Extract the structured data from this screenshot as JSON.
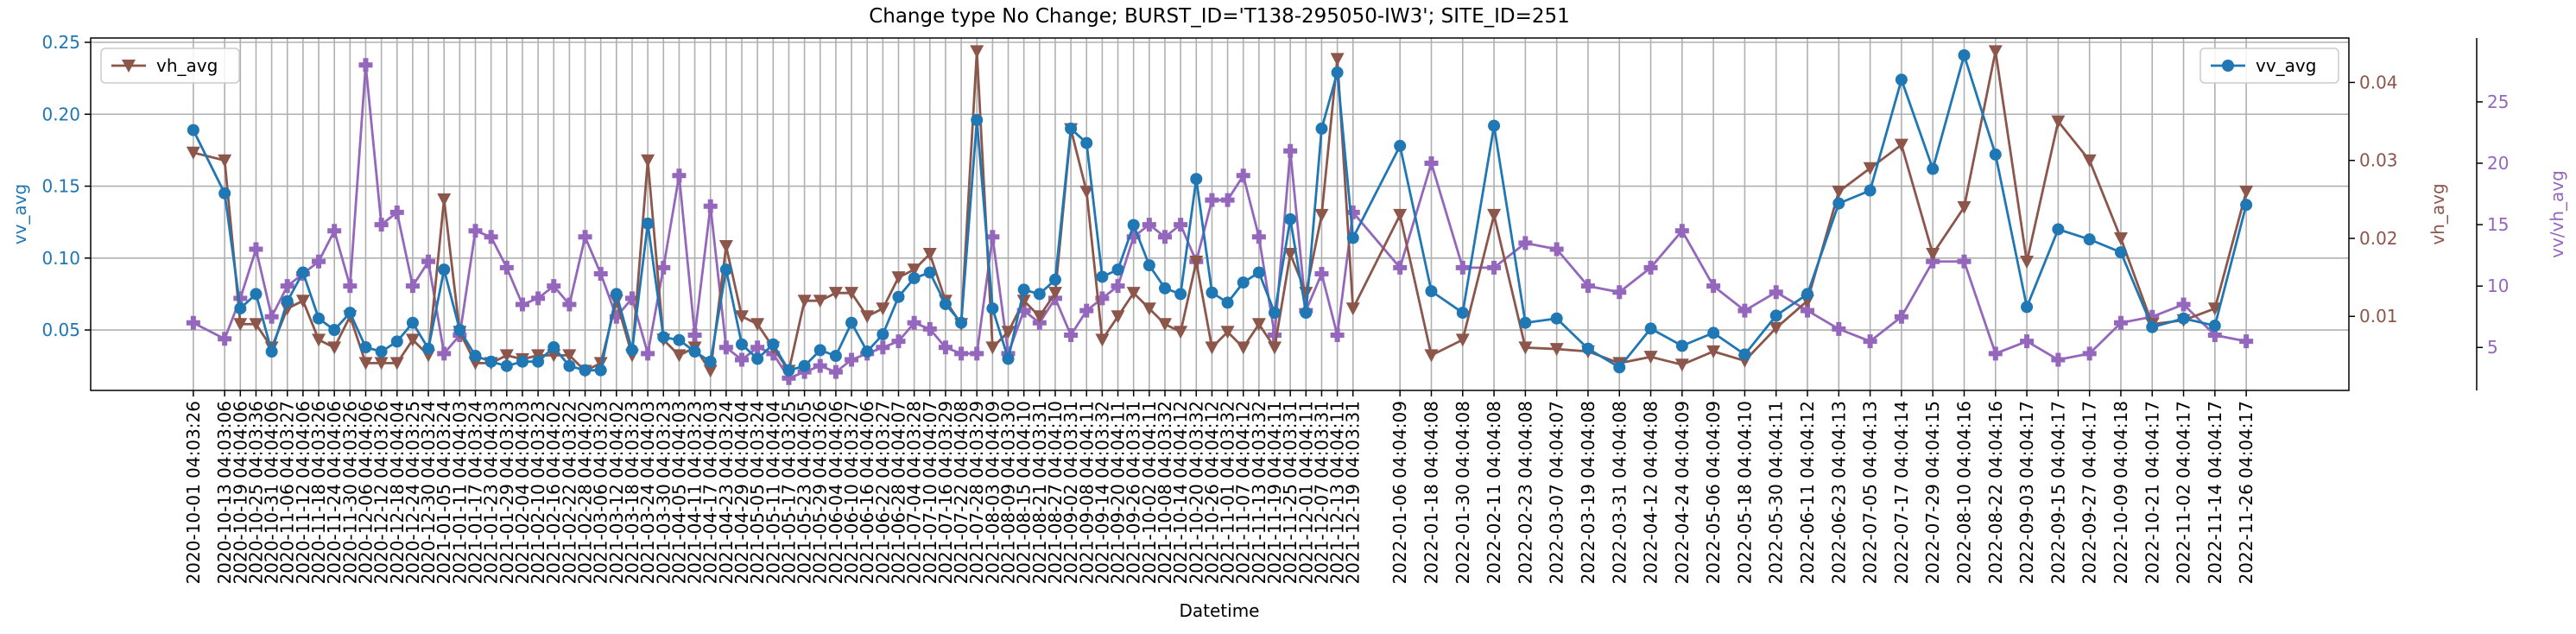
{
  "chart_data": {
    "type": "line",
    "title": "Change type No Change; BURST_ID='T138-295050-IW3'; SITE_ID=251",
    "x_label": "Datetime",
    "y_label": "vv_avg",
    "y2_label": "vh_avg",
    "y3_label": "vv/vh_avg",
    "x": [
      "2020-10-01 04:03:26",
      "2020-10-13 04:03:06",
      "2020-10-19 04:04:06",
      "2020-10-25 04:03:36",
      "2020-10-31 04:04:06",
      "2020-11-06 04:03:27",
      "2020-11-12 04:04:06",
      "2020-11-18 04:03:26",
      "2020-11-24 04:04:06",
      "2020-11-30 04:03:26",
      "2020-12-06 04:04:06",
      "2020-12-12 04:03:26",
      "2020-12-18 04:04:04",
      "2020-12-24 04:03:25",
      "2020-12-30 04:03:24",
      "2021-01-05 04:03:24",
      "2021-01-11 04:04:03",
      "2021-01-17 04:03:24",
      "2021-01-23 04:04:03",
      "2021-01-29 04:03:23",
      "2021-02-04 04:04:03",
      "2021-02-10 04:03:23",
      "2021-02-16 04:04:02",
      "2021-02-22 04:03:22",
      "2021-02-28 04:04:02",
      "2021-03-06 04:03:23",
      "2021-03-12 04:04:02",
      "2021-03-18 04:03:23",
      "2021-03-24 04:04:03",
      "2021-03-30 04:03:23",
      "2021-04-05 04:04:03",
      "2021-04-11 04:03:23",
      "2021-04-17 04:04:03",
      "2021-04-23 04:03:24",
      "2021-04-29 04:04:04",
      "2021-05-05 04:03:24",
      "2021-05-11 04:04:04",
      "2021-05-17 04:03:25",
      "2021-05-23 04:04:05",
      "2021-05-29 04:03:26",
      "2021-06-04 04:04:06",
      "2021-06-10 04:03:27",
      "2021-06-16 04:04:06",
      "2021-06-22 04:03:27",
      "2021-06-28 04:04:07",
      "2021-07-04 04:03:28",
      "2021-07-10 04:04:07",
      "2021-07-16 04:03:29",
      "2021-07-22 04:04:08",
      "2021-07-28 04:03:29",
      "2021-08-03 04:04:09",
      "2021-08-09 04:03:30",
      "2021-08-15 04:04:10",
      "2021-08-21 04:03:31",
      "2021-08-27 04:04:10",
      "2021-09-02 04:03:31",
      "2021-09-08 04:04:11",
      "2021-09-14 04:03:32",
      "2021-09-20 04:04:11",
      "2021-09-26 04:03:31",
      "2021-10-02 04:04:11",
      "2021-10-08 04:03:32",
      "2021-10-14 04:04:12",
      "2021-10-20 04:03:32",
      "2021-10-26 04:04:12",
      "2021-11-01 04:03:32",
      "2021-11-07 04:04:12",
      "2021-11-13 04:03:32",
      "2021-11-19 04:04:11",
      "2021-11-25 04:03:31",
      "2021-12-01 04:04:11",
      "2021-12-07 04:03:31",
      "2021-12-13 04:04:11",
      "2021-12-19 04:03:31",
      "2022-01-06 04:04:09",
      "2022-01-18 04:04:08",
      "2022-01-30 04:04:08",
      "2022-02-11 04:04:08",
      "2022-02-23 04:04:08",
      "2022-03-07 04:04:07",
      "2022-03-19 04:04:08",
      "2022-03-31 04:04:08",
      "2022-04-12 04:04:08",
      "2022-04-24 04:04:09",
      "2022-05-06 04:04:09",
      "2022-05-18 04:04:10",
      "2022-05-30 04:04:11",
      "2022-06-11 04:04:12",
      "2022-06-23 04:04:13",
      "2022-07-05 04:04:13",
      "2022-07-17 04:04:14",
      "2022-07-29 04:04:15",
      "2022-08-10 04:04:16",
      "2022-08-22 04:04:16",
      "2022-09-03 04:04:17",
      "2022-09-15 04:04:17",
      "2022-09-27 04:04:17",
      "2022-10-09 04:04:18",
      "2022-10-21 04:04:17",
      "2022-11-02 04:04:17",
      "2022-11-14 04:04:17",
      "2022-11-26 04:04:17"
    ],
    "series": [
      {
        "name": "vv_avg",
        "color": "#1f77b4",
        "marker": "o",
        "axis": "y",
        "legend": "upper right",
        "values": [
          0.189,
          0.145,
          0.065,
          0.075,
          0.035,
          0.07,
          0.09,
          0.058,
          0.05,
          0.062,
          0.038,
          0.035,
          0.042,
          0.055,
          0.037,
          0.092,
          0.05,
          0.032,
          0.028,
          0.025,
          0.028,
          0.028,
          0.038,
          0.025,
          0.022,
          0.022,
          0.075,
          0.036,
          0.124,
          0.045,
          0.043,
          0.035,
          0.028,
          0.092,
          0.04,
          0.03,
          0.04,
          0.022,
          0.025,
          0.036,
          0.032,
          0.055,
          0.035,
          0.047,
          0.073,
          0.086,
          0.09,
          0.068,
          0.055,
          0.196,
          0.065,
          0.03,
          0.078,
          0.075,
          0.085,
          0.19,
          0.18,
          0.087,
          0.092,
          0.123,
          0.095,
          0.079,
          0.075,
          0.155,
          0.076,
          0.069,
          0.083,
          0.09,
          0.062,
          0.127,
          0.062,
          0.19,
          0.229,
          0.114,
          0.178,
          0.077,
          0.062,
          0.192,
          0.055,
          0.058,
          0.037,
          0.024,
          0.051,
          0.039,
          0.048,
          0.033,
          0.06,
          0.075,
          0.138,
          0.147,
          0.224,
          0.162,
          0.241,
          0.172,
          0.066,
          0.12,
          0.113,
          0.104,
          0.052,
          0.058,
          0.053,
          0.137
        ]
      },
      {
        "name": "vh_avg",
        "color": "#8c564b",
        "marker": "v",
        "axis": "y2",
        "legend": "upper left",
        "values": [
          0.031,
          0.03,
          0.009,
          0.009,
          0.006,
          0.011,
          0.012,
          0.007,
          0.006,
          0.01,
          0.004,
          0.004,
          0.004,
          0.007,
          0.005,
          0.025,
          0.008,
          0.004,
          0.004,
          0.005,
          0.0045,
          0.005,
          0.005,
          0.005,
          0.003,
          0.004,
          0.012,
          0.005,
          0.03,
          0.007,
          0.005,
          0.006,
          0.003,
          0.019,
          0.01,
          0.009,
          0.006,
          0.003,
          0.012,
          0.012,
          0.013,
          0.013,
          0.01,
          0.011,
          0.015,
          0.016,
          0.018,
          0.012,
          0.009,
          0.044,
          0.006,
          0.008,
          0.012,
          0.01,
          0.013,
          0.034,
          0.026,
          0.007,
          0.01,
          0.013,
          0.011,
          0.009,
          0.008,
          0.017,
          0.006,
          0.008,
          0.006,
          0.009,
          0.006,
          0.018,
          0.013,
          0.023,
          0.043,
          0.011,
          0.023,
          0.005,
          0.007,
          0.023,
          0.006,
          0.0058,
          0.0055,
          0.004,
          0.0048,
          0.0038,
          0.0055,
          0.0043,
          0.0085,
          0.012,
          0.026,
          0.029,
          0.032,
          0.018,
          0.024,
          0.044,
          0.017,
          0.035,
          0.03,
          0.02,
          0.009,
          0.0095,
          0.011,
          0.026
        ]
      },
      {
        "name": "vv/vh_avg",
        "color": "#9467bd",
        "marker": "P",
        "axis": "y3",
        "values": [
          7,
          5.7,
          9,
          13,
          7.5,
          10,
          11,
          12,
          14.5,
          10,
          28,
          15,
          16,
          10,
          12,
          4.5,
          6,
          14.5,
          14,
          11.5,
          8.5,
          9,
          10,
          8.5,
          14,
          11,
          7.5,
          9,
          4.5,
          11.5,
          19,
          6,
          16.5,
          5,
          4,
          5,
          4.5,
          2.5,
          3,
          3.5,
          3,
          4,
          4.5,
          5,
          5.5,
          7,
          6.5,
          5,
          4.5,
          4.5,
          14,
          4.5,
          8,
          7,
          9,
          6,
          8,
          9,
          10,
          14,
          15,
          14,
          15,
          12,
          17,
          17,
          19,
          14,
          6,
          21,
          8,
          11,
          6,
          16,
          11.5,
          20,
          11.5,
          11.5,
          13.5,
          13,
          10,
          9.5,
          11.5,
          14.5,
          10,
          8,
          9.5,
          8,
          6.5,
          5.5,
          7.5,
          12,
          12,
          4.5,
          5.5,
          4,
          4.5,
          7,
          7.5,
          8.5,
          6,
          5.5
        ]
      }
    ],
    "ylim": [
      0.008,
      0.253
    ],
    "yticks": [
      0.05,
      {
        "value": 0.1,
        "label": "0.10"
      },
      0.15,
      {
        "value": 0.2,
        "label": "0.20"
      },
      0.25
    ],
    "y2lim": [
      0.0005,
      0.0457
    ],
    "y2ticks": [
      0.01,
      0.02,
      0.03,
      0.04
    ],
    "y3lim": [
      1.5,
      30.2
    ],
    "y3ticks": [
      5,
      10,
      15,
      20,
      25
    ],
    "grid": true
  }
}
